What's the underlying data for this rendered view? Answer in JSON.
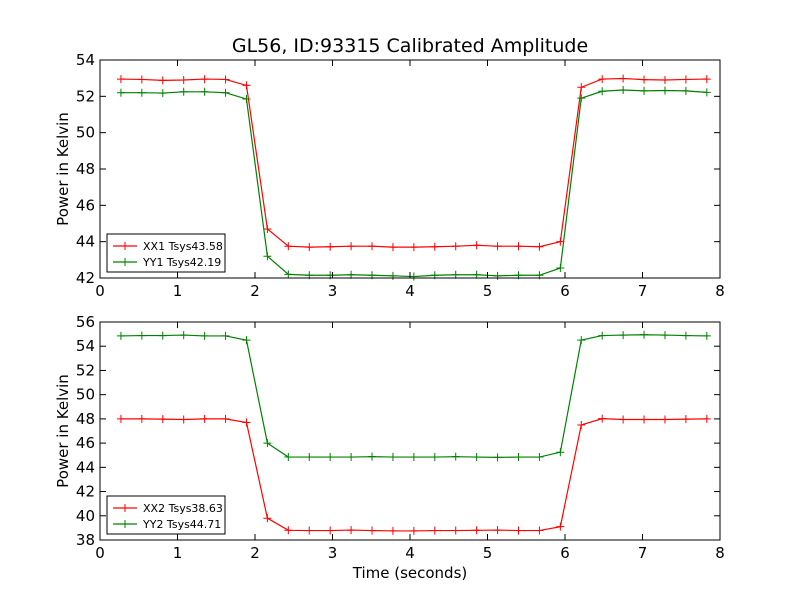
{
  "chart_data": [
    {
      "type": "line",
      "title": "GL56, ID:93315 Calibrated Amplitude",
      "xlabel": "",
      "ylabel": "Power in Kelvin",
      "xlim": [
        0,
        8
      ],
      "ylim": [
        42,
        54
      ],
      "xticks": [
        0,
        1,
        2,
        3,
        4,
        5,
        6,
        7,
        8
      ],
      "yticks": [
        42,
        44,
        46,
        48,
        50,
        52,
        54
      ],
      "grid": false,
      "legend_position": "lower-left",
      "x": [
        0.27,
        0.54,
        0.81,
        1.08,
        1.35,
        1.62,
        1.89,
        2.16,
        2.43,
        2.7,
        2.97,
        3.24,
        3.51,
        3.78,
        4.05,
        4.32,
        4.59,
        4.86,
        5.13,
        5.4,
        5.67,
        5.94,
        6.21,
        6.48,
        6.75,
        7.02,
        7.29,
        7.56,
        7.83
      ],
      "series": [
        {
          "name": "XX1 Tsys43.58",
          "color": "#ff0000",
          "values": [
            52.95,
            52.93,
            52.88,
            52.9,
            52.95,
            52.93,
            52.6,
            44.7,
            43.75,
            43.7,
            43.72,
            43.75,
            43.75,
            43.7,
            43.7,
            43.72,
            43.75,
            43.8,
            43.75,
            43.75,
            43.72,
            44.0,
            52.5,
            52.95,
            52.98,
            52.92,
            52.9,
            52.93,
            52.95
          ]
        },
        {
          "name": "YY1 Tsys42.19",
          "color": "#008000",
          "values": [
            52.2,
            52.2,
            52.18,
            52.25,
            52.25,
            52.2,
            51.85,
            43.2,
            42.2,
            42.15,
            42.15,
            42.18,
            42.15,
            42.12,
            42.08,
            42.15,
            42.18,
            42.18,
            42.12,
            42.15,
            42.15,
            42.55,
            51.9,
            52.28,
            52.35,
            52.3,
            52.32,
            52.3,
            52.22
          ]
        }
      ]
    },
    {
      "type": "line",
      "title": "",
      "xlabel": "Time (seconds)",
      "ylabel": "Power in Kelvin",
      "xlim": [
        0,
        8
      ],
      "ylim": [
        38,
        56
      ],
      "xticks": [
        0,
        1,
        2,
        3,
        4,
        5,
        6,
        7,
        8
      ],
      "yticks": [
        38,
        40,
        42,
        44,
        46,
        48,
        50,
        52,
        54,
        56
      ],
      "grid": false,
      "legend_position": "lower-left",
      "x": [
        0.27,
        0.54,
        0.81,
        1.08,
        1.35,
        1.62,
        1.89,
        2.16,
        2.43,
        2.7,
        2.97,
        3.24,
        3.51,
        3.78,
        4.05,
        4.32,
        4.59,
        4.86,
        5.13,
        5.4,
        5.67,
        5.94,
        6.21,
        6.48,
        6.75,
        7.02,
        7.29,
        7.56,
        7.83
      ],
      "series": [
        {
          "name": "XX2 Tsys38.63",
          "color": "#ff0000",
          "values": [
            48.0,
            48.0,
            47.98,
            47.95,
            48.0,
            48.0,
            47.7,
            39.8,
            38.8,
            38.78,
            38.78,
            38.82,
            38.78,
            38.75,
            38.75,
            38.78,
            38.78,
            38.8,
            38.82,
            38.78,
            38.78,
            39.1,
            47.5,
            48.02,
            47.95,
            47.95,
            47.95,
            47.98,
            48.0
          ]
        },
        {
          "name": "YY2 Tsys44.71",
          "color": "#008000",
          "values": [
            54.85,
            54.88,
            54.88,
            54.92,
            54.85,
            54.85,
            54.5,
            46.0,
            44.85,
            44.85,
            44.85,
            44.85,
            44.88,
            44.85,
            44.85,
            44.85,
            44.88,
            44.85,
            44.82,
            44.85,
            44.85,
            45.25,
            54.5,
            54.88,
            54.92,
            54.95,
            54.92,
            54.88,
            54.85
          ]
        }
      ]
    }
  ]
}
